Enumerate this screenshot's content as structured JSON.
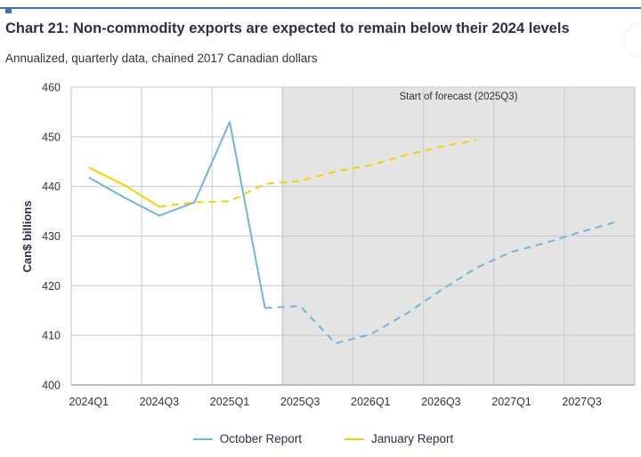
{
  "chart_data": {
    "type": "line",
    "title": "Chart 21: Non-commodity exports are expected to remain below their 2024 levels",
    "subtitle": "Annualized, quarterly data, chained 2017 Canadian dollars",
    "xlabel": "",
    "ylabel": "Can$ billions",
    "ylim": [
      400,
      460
    ],
    "yticks": [
      400,
      410,
      420,
      430,
      440,
      450,
      460
    ],
    "grid": true,
    "legend_position": "bottom",
    "x": [
      "2024Q1",
      "2024Q2",
      "2024Q3",
      "2024Q4",
      "2025Q1",
      "2025Q2",
      "2025Q3",
      "2025Q4",
      "2026Q1",
      "2026Q2",
      "2026Q3",
      "2026Q4",
      "2027Q1",
      "2027Q2",
      "2027Q3",
      "2027Q4"
    ],
    "xtick_labels": [
      "2024Q1",
      "2024Q3",
      "2025Q1",
      "2025Q3",
      "2026Q1",
      "2026Q3",
      "2027Q1",
      "2027Q3"
    ],
    "forecast_start": "2025Q3",
    "annotation": "Start of forecast (2025Q3)",
    "series": [
      {
        "name": "October Report",
        "color": "#6bb8dc",
        "values": [
          441.8,
          437.8,
          434.1,
          436.8,
          453.0,
          415.5,
          415.9,
          408.4,
          410.2,
          414.3,
          419.1,
          423.6,
          426.8,
          428.7,
          430.9,
          432.9
        ],
        "solid_until": "2025Q2"
      },
      {
        "name": "January Report",
        "color": "#f5d000",
        "values": [
          443.8,
          440.3,
          435.9,
          436.8,
          437.0,
          440.5,
          441.1,
          443.0,
          444.3,
          446.3,
          448.0,
          449.3,
          null,
          null,
          null,
          null
        ],
        "solid_until": "2024Q3"
      }
    ]
  },
  "colors": {
    "accent": "#3a75b0",
    "forecast_shade": "#e4e4e4",
    "gridline": "#c8c8c8"
  }
}
